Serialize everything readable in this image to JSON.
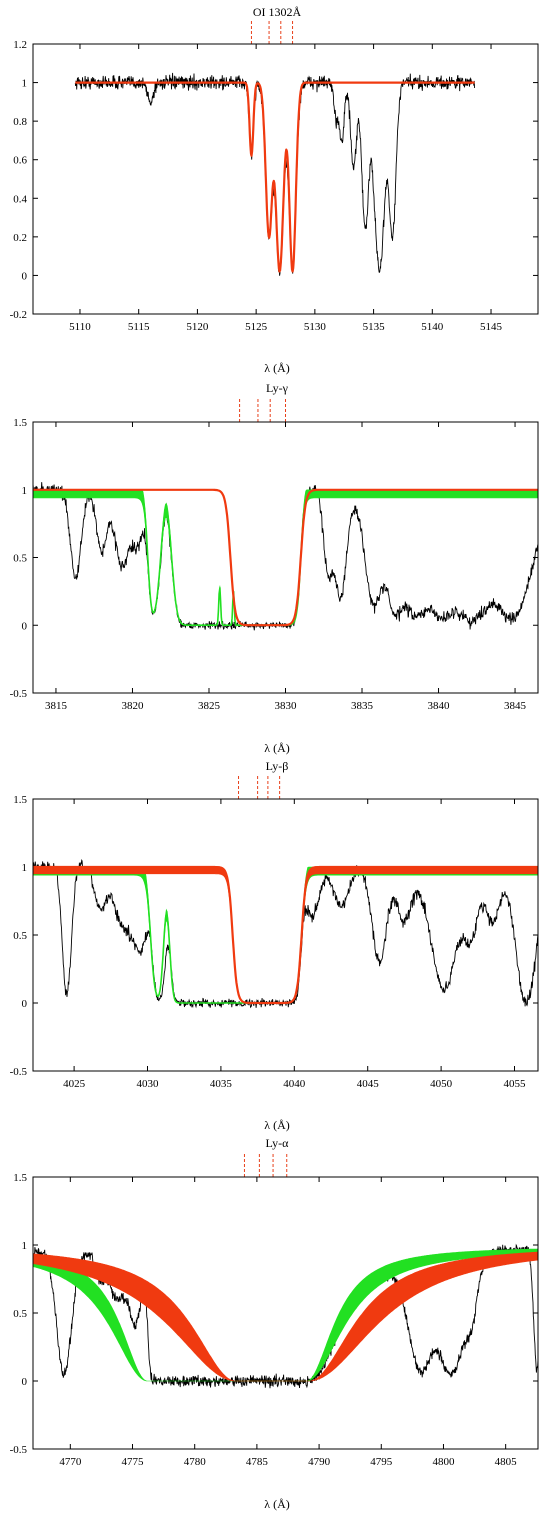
{
  "chart_data": [
    {
      "type": "line",
      "title": "OI 1302Å",
      "xlabel": "λ (Å)",
      "ylabel": "",
      "xlim": [
        5106,
        5149
      ],
      "ylim": [
        -0.2,
        1.2
      ],
      "xticks": [
        5110,
        5115,
        5120,
        5125,
        5130,
        5135,
        5140,
        5145
      ],
      "yticks": [
        -0.2,
        0,
        0.2,
        0.4,
        0.6,
        0.8,
        1,
        1.2
      ],
      "ytick_labels": [
        "-0.2",
        "0",
        "0.2",
        "0.4",
        "0.6",
        "0.8",
        "1",
        "1.2"
      ],
      "markers": [
        5124.6,
        5126.1,
        5127.1,
        5128.1
      ],
      "spectrum": {
        "range": [
          5109.6,
          5143.6
        ],
        "noise": 0.035,
        "absorptions": [
          {
            "center": 5116.0,
            "depth": 0.1,
            "width": 0.25
          },
          {
            "center": 5124.6,
            "depth": 0.38,
            "width": 0.18
          },
          {
            "center": 5126.1,
            "depth": 0.8,
            "width": 0.3
          },
          {
            "center": 5127.0,
            "depth": 0.98,
            "width": 0.35
          },
          {
            "center": 5128.1,
            "depth": 0.98,
            "width": 0.3
          },
          {
            "center": 5131.8,
            "depth": 0.18,
            "width": 0.2
          },
          {
            "center": 5132.3,
            "depth": 0.3,
            "width": 0.2
          },
          {
            "center": 5133.3,
            "depth": 0.45,
            "width": 0.25
          },
          {
            "center": 5134.3,
            "depth": 0.75,
            "width": 0.3
          },
          {
            "center": 5135.5,
            "depth": 0.98,
            "width": 0.45
          },
          {
            "center": 5136.6,
            "depth": 0.8,
            "width": 0.3
          }
        ]
      },
      "model_red": {
        "range": [
          5109.6,
          5143.6
        ],
        "absorptions": [
          {
            "center": 5124.6,
            "depth": 0.38,
            "width": 0.16
          },
          {
            "center": 5126.1,
            "depth": 0.8,
            "width": 0.28
          },
          {
            "center": 5127.0,
            "depth": 0.98,
            "width": 0.33
          },
          {
            "center": 5128.1,
            "depth": 0.98,
            "width": 0.28
          }
        ]
      }
    },
    {
      "type": "line",
      "title": "Ly-γ",
      "xlabel": "λ (Å)",
      "ylabel": "",
      "xlim": [
        3813.5,
        3846.5
      ],
      "ylim": [
        -0.5,
        1.5
      ],
      "xticks": [
        3815,
        3820,
        3825,
        3830,
        3835,
        3840,
        3845
      ],
      "yticks": [
        -0.5,
        0,
        0.5,
        1,
        1.5
      ],
      "ytick_labels": [
        "-0.5",
        "0",
        "0.5",
        "1",
        "1.5"
      ],
      "markers": [
        3827.0,
        3828.2,
        3829.0,
        3830.0
      ],
      "spectrum": {
        "range": [
          3813.5,
          3846.5
        ],
        "noise": 0.045,
        "trough": [
          3821.0,
          3831.0
        ],
        "absorptions": [
          {
            "center": 3816.3,
            "depth": 0.65,
            "width": 0.35
          },
          {
            "center": 3818.0,
            "depth": 0.45,
            "width": 0.35
          },
          {
            "center": 3819.3,
            "depth": 0.55,
            "width": 0.45
          },
          {
            "center": 3820.3,
            "depth": 0.4,
            "width": 0.45
          },
          {
            "center": 3832.8,
            "depth": 0.6,
            "width": 0.3
          },
          {
            "center": 3833.6,
            "depth": 0.8,
            "width": 0.4
          },
          {
            "center": 3835.8,
            "depth": 0.85,
            "width": 0.6
          },
          {
            "center": 3837.2,
            "depth": 0.9,
            "width": 0.6
          },
          {
            "center": 3838.5,
            "depth": 0.9,
            "width": 0.9
          },
          {
            "center": 3840.2,
            "depth": 0.9,
            "width": 1.2
          },
          {
            "center": 3842.2,
            "depth": 0.95,
            "width": 1.4
          },
          {
            "center": 3844.8,
            "depth": 0.95,
            "width": 1.3
          }
        ],
        "bumps": [
          {
            "center": 3822.2,
            "height": 0.8,
            "width": 0.35
          },
          {
            "center": 3843.6,
            "height": 0.62,
            "width": 0.1
          }
        ]
      },
      "model_red": {
        "trough": [
          3826.4,
          3831.0
        ],
        "edge": 0.15
      },
      "model_green": {
        "trough": [
          3821.0,
          3831.0
        ],
        "edge": 0.12,
        "bumps": [
          {
            "center": 3822.2,
            "height": 0.85,
            "width": 0.35
          },
          {
            "center": 3825.7,
            "height": 0.28,
            "width": 0.06
          },
          {
            "center": 3826.6,
            "height": 0.25,
            "width": 0.05
          }
        ],
        "band": 0.06
      }
    },
    {
      "type": "line",
      "title": "Ly-β",
      "xlabel": "λ (Å)",
      "ylabel": "",
      "xlim": [
        4022.2,
        4056.6
      ],
      "ylim": [
        -0.5,
        1.5
      ],
      "xticks": [
        4025,
        4030,
        4035,
        4040,
        4045,
        4050,
        4055
      ],
      "yticks": [
        -0.5,
        0,
        0.5,
        1,
        1.5
      ],
      "ytick_labels": [
        "-0.5",
        "0",
        "0.5",
        "1",
        "1.5"
      ],
      "markers": [
        4036.2,
        4037.5,
        4038.2,
        4039.0
      ],
      "spectrum": {
        "range": [
          4022.2,
          4056.6
        ],
        "noise": 0.045,
        "trough": [
          4030.3,
          4040.5
        ],
        "absorptions": [
          {
            "center": 4024.5,
            "depth": 0.95,
            "width": 0.3
          },
          {
            "center": 4026.8,
            "depth": 0.3,
            "width": 0.4
          },
          {
            "center": 4028.3,
            "depth": 0.4,
            "width": 0.6
          },
          {
            "center": 4029.5,
            "depth": 0.6,
            "width": 0.6
          },
          {
            "center": 4041.2,
            "depth": 0.35,
            "width": 0.5
          },
          {
            "center": 4043.2,
            "depth": 0.3,
            "width": 0.5
          },
          {
            "center": 4045.8,
            "depth": 0.7,
            "width": 0.5
          },
          {
            "center": 4047.5,
            "depth": 0.4,
            "width": 0.5
          },
          {
            "center": 4050.2,
            "depth": 0.9,
            "width": 0.9
          },
          {
            "center": 4052.0,
            "depth": 0.5,
            "width": 0.5
          },
          {
            "center": 4053.5,
            "depth": 0.4,
            "width": 0.5
          },
          {
            "center": 4055.8,
            "depth": 1.0,
            "width": 0.7
          }
        ],
        "bumps": [
          {
            "center": 4031.4,
            "height": 0.42,
            "width": 0.22
          }
        ]
      },
      "model_red": {
        "trough": [
          4035.8,
          4040.5
        ],
        "edge": 0.15,
        "band": 0.05
      },
      "model_green": {
        "trough": [
          4030.2,
          4040.5
        ],
        "edge": 0.15,
        "bumps": [
          {
            "center": 4031.3,
            "height": 0.65,
            "width": 0.22
          }
        ],
        "band": 0.06
      }
    },
    {
      "type": "line",
      "title": "Ly-α",
      "xlabel": "λ (Å)",
      "ylabel": "",
      "xlim": [
        4767.0,
        4807.6
      ],
      "ylim": [
        -0.5,
        1.5
      ],
      "xticks": [
        4770,
        4775,
        4780,
        4785,
        4790,
        4795,
        4800,
        4805
      ],
      "yticks": [
        -0.5,
        0,
        0.5,
        1,
        1.5
      ],
      "ytick_labels": [
        "-0.5",
        "0",
        "0.5",
        "1",
        "1.5"
      ],
      "markers": [
        4784.0,
        4785.2,
        4786.3,
        4787.4
      ],
      "spectrum": {
        "range": [
          4767.0,
          4807.6
        ],
        "noise": 0.04,
        "trough": [
          4776.2,
          4789.2
        ],
        "absorptions": [
          {
            "center": 4769.5,
            "depth": 0.95,
            "width": 0.6
          },
          {
            "center": 4772.4,
            "depth": 0.2,
            "width": 0.4
          },
          {
            "center": 4773.7,
            "depth": 0.35,
            "width": 0.6
          },
          {
            "center": 4775.2,
            "depth": 0.55,
            "width": 0.6
          },
          {
            "center": 4798.2,
            "depth": 0.92,
            "width": 1.0
          },
          {
            "center": 4800.6,
            "depth": 0.95,
            "width": 1.2
          },
          {
            "center": 4802.2,
            "depth": 0.4,
            "width": 0.4
          },
          {
            "center": 4807.5,
            "depth": 0.9,
            "width": 0.25
          }
        ],
        "recovery": [
          4789.2,
          4805.0
        ]
      },
      "model_red": {
        "wings": [
          4783.3,
          4789.2
        ]
      },
      "model_green": {
        "wings": [
          4776.2,
          4789.0
        ]
      }
    }
  ]
}
